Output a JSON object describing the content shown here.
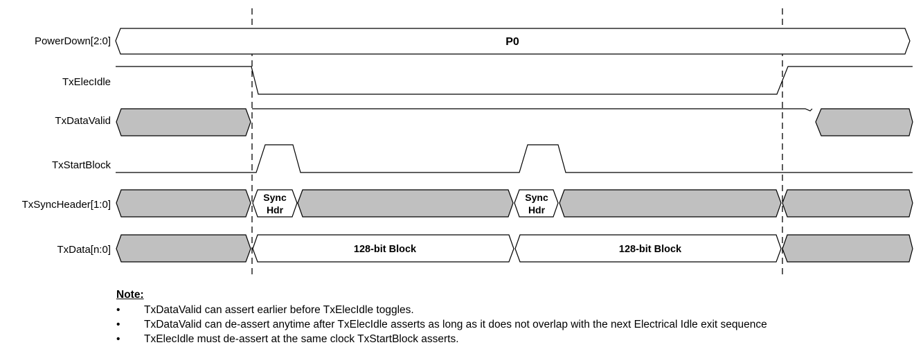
{
  "signals": [
    {
      "id": "powerdown",
      "label": "PowerDown[2:0]"
    },
    {
      "id": "txelecidle",
      "label": "TxElecIdle"
    },
    {
      "id": "txdatavalid",
      "label": "TxDataValid"
    },
    {
      "id": "txstartblock",
      "label": "TxStartBlock"
    },
    {
      "id": "txsyncheader",
      "label": "TxSyncHeader[1:0]"
    },
    {
      "id": "txdata",
      "label": "TxData[n:0]"
    }
  ],
  "powerdown_state": "P0",
  "sync_hdr": {
    "line1": "Sync",
    "line2": "Hdr"
  },
  "block_label": "128-bit Block",
  "note": {
    "title": "Note:",
    "bullet": "•",
    "items": [
      "TxDataValid can assert earlier before TxElecIdle toggles.",
      "TxDataValid can de-assert anytime after TxElecIdle asserts as long as it does not overlap with the next Electrical Idle exit sequence",
      "TxElecIdle must de-assert at the same clock TxStartBlock asserts."
    ]
  },
  "colors": {
    "fill_unknown": "#c0c0c0",
    "line": "#000000"
  }
}
